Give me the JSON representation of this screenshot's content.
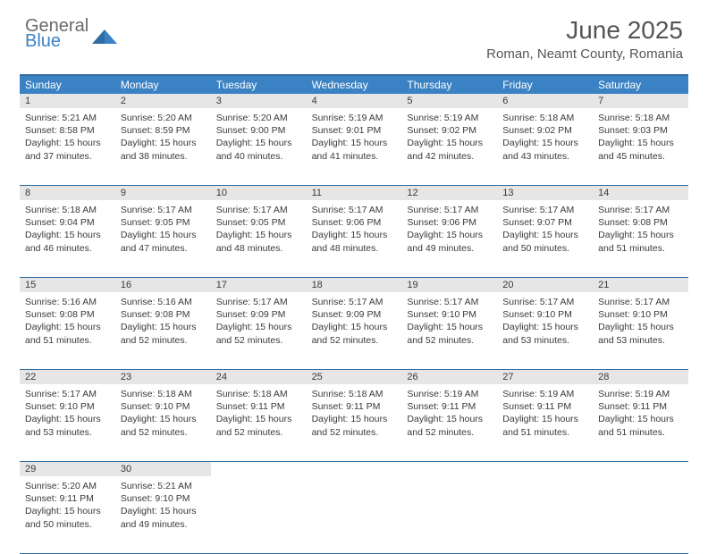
{
  "logo": {
    "part1": "General",
    "part2": "Blue"
  },
  "title": "June 2025",
  "location": "Roman, Neamt County, Romania",
  "header_color": "#3b82c4",
  "border_color": "#2f6da3",
  "daynum_bg": "#e6e6e6",
  "dayNames": [
    "Sunday",
    "Monday",
    "Tuesday",
    "Wednesday",
    "Thursday",
    "Friday",
    "Saturday"
  ],
  "weeks": [
    [
      {
        "n": "1",
        "sr": "5:21 AM",
        "ss": "8:58 PM",
        "dl": "15 hours and 37 minutes."
      },
      {
        "n": "2",
        "sr": "5:20 AM",
        "ss": "8:59 PM",
        "dl": "15 hours and 38 minutes."
      },
      {
        "n": "3",
        "sr": "5:20 AM",
        "ss": "9:00 PM",
        "dl": "15 hours and 40 minutes."
      },
      {
        "n": "4",
        "sr": "5:19 AM",
        "ss": "9:01 PM",
        "dl": "15 hours and 41 minutes."
      },
      {
        "n": "5",
        "sr": "5:19 AM",
        "ss": "9:02 PM",
        "dl": "15 hours and 42 minutes."
      },
      {
        "n": "6",
        "sr": "5:18 AM",
        "ss": "9:02 PM",
        "dl": "15 hours and 43 minutes."
      },
      {
        "n": "7",
        "sr": "5:18 AM",
        "ss": "9:03 PM",
        "dl": "15 hours and 45 minutes."
      }
    ],
    [
      {
        "n": "8",
        "sr": "5:18 AM",
        "ss": "9:04 PM",
        "dl": "15 hours and 46 minutes."
      },
      {
        "n": "9",
        "sr": "5:17 AM",
        "ss": "9:05 PM",
        "dl": "15 hours and 47 minutes."
      },
      {
        "n": "10",
        "sr": "5:17 AM",
        "ss": "9:05 PM",
        "dl": "15 hours and 48 minutes."
      },
      {
        "n": "11",
        "sr": "5:17 AM",
        "ss": "9:06 PM",
        "dl": "15 hours and 48 minutes."
      },
      {
        "n": "12",
        "sr": "5:17 AM",
        "ss": "9:06 PM",
        "dl": "15 hours and 49 minutes."
      },
      {
        "n": "13",
        "sr": "5:17 AM",
        "ss": "9:07 PM",
        "dl": "15 hours and 50 minutes."
      },
      {
        "n": "14",
        "sr": "5:17 AM",
        "ss": "9:08 PM",
        "dl": "15 hours and 51 minutes."
      }
    ],
    [
      {
        "n": "15",
        "sr": "5:16 AM",
        "ss": "9:08 PM",
        "dl": "15 hours and 51 minutes."
      },
      {
        "n": "16",
        "sr": "5:16 AM",
        "ss": "9:08 PM",
        "dl": "15 hours and 52 minutes."
      },
      {
        "n": "17",
        "sr": "5:17 AM",
        "ss": "9:09 PM",
        "dl": "15 hours and 52 minutes."
      },
      {
        "n": "18",
        "sr": "5:17 AM",
        "ss": "9:09 PM",
        "dl": "15 hours and 52 minutes."
      },
      {
        "n": "19",
        "sr": "5:17 AM",
        "ss": "9:10 PM",
        "dl": "15 hours and 52 minutes."
      },
      {
        "n": "20",
        "sr": "5:17 AM",
        "ss": "9:10 PM",
        "dl": "15 hours and 53 minutes."
      },
      {
        "n": "21",
        "sr": "5:17 AM",
        "ss": "9:10 PM",
        "dl": "15 hours and 53 minutes."
      }
    ],
    [
      {
        "n": "22",
        "sr": "5:17 AM",
        "ss": "9:10 PM",
        "dl": "15 hours and 53 minutes."
      },
      {
        "n": "23",
        "sr": "5:18 AM",
        "ss": "9:10 PM",
        "dl": "15 hours and 52 minutes."
      },
      {
        "n": "24",
        "sr": "5:18 AM",
        "ss": "9:11 PM",
        "dl": "15 hours and 52 minutes."
      },
      {
        "n": "25",
        "sr": "5:18 AM",
        "ss": "9:11 PM",
        "dl": "15 hours and 52 minutes."
      },
      {
        "n": "26",
        "sr": "5:19 AM",
        "ss": "9:11 PM",
        "dl": "15 hours and 52 minutes."
      },
      {
        "n": "27",
        "sr": "5:19 AM",
        "ss": "9:11 PM",
        "dl": "15 hours and 51 minutes."
      },
      {
        "n": "28",
        "sr": "5:19 AM",
        "ss": "9:11 PM",
        "dl": "15 hours and 51 minutes."
      }
    ],
    [
      {
        "n": "29",
        "sr": "5:20 AM",
        "ss": "9:11 PM",
        "dl": "15 hours and 50 minutes."
      },
      {
        "n": "30",
        "sr": "5:21 AM",
        "ss": "9:10 PM",
        "dl": "15 hours and 49 minutes."
      },
      null,
      null,
      null,
      null,
      null
    ]
  ],
  "labels": {
    "sunrise": "Sunrise: ",
    "sunset": "Sunset: ",
    "daylight": "Daylight: "
  }
}
